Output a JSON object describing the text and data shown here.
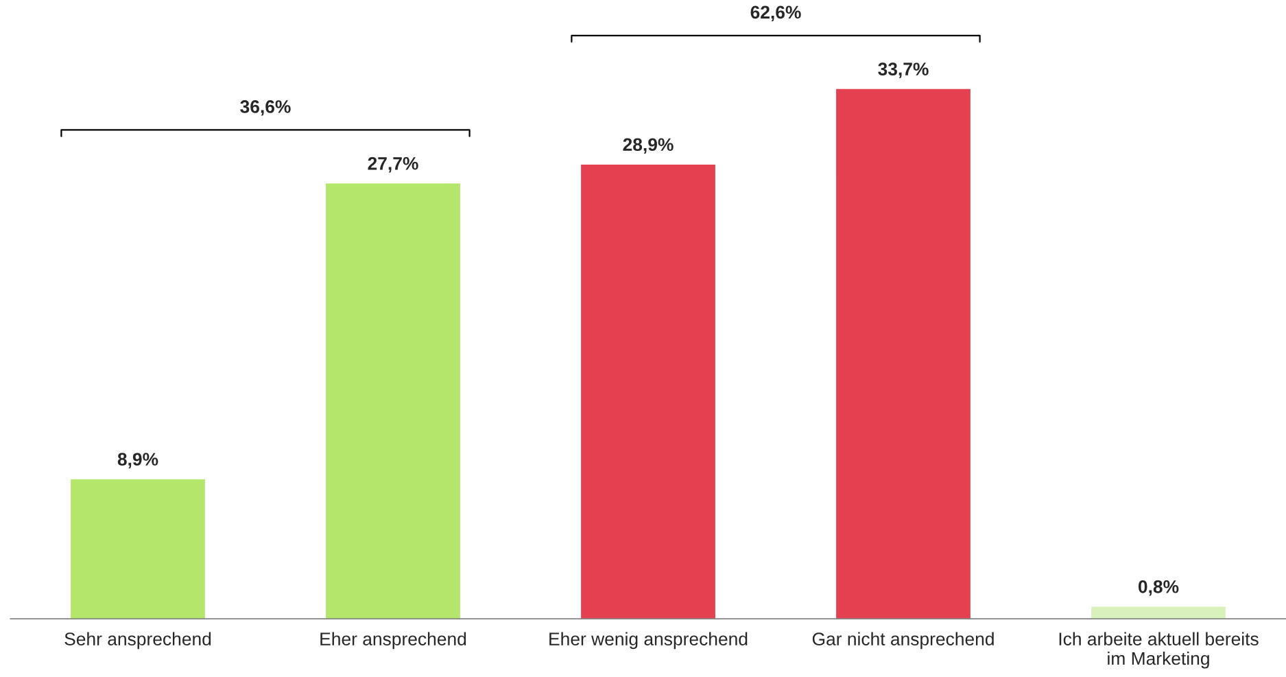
{
  "chart_data": {
    "type": "bar",
    "categories": [
      "Sehr ansprechend",
      "Eher ansprechend",
      "Eher wenig ansprechend",
      "Gar nicht ansprechend",
      "Ich arbeite aktuell bereits\nim Marketing"
    ],
    "values": [
      8.9,
      27.7,
      28.9,
      33.7,
      0.8
    ],
    "colors": [
      "#b3e66a",
      "#b3e66a",
      "#e5404f",
      "#e5404f",
      "#d9f2bc"
    ],
    "value_labels": [
      "8,9%",
      "27,7%",
      "28,9%",
      "33,7%",
      "0,8%"
    ],
    "annotations": [
      "36,6%",
      "62,6%"
    ],
    "grid": false,
    "legend": false
  }
}
